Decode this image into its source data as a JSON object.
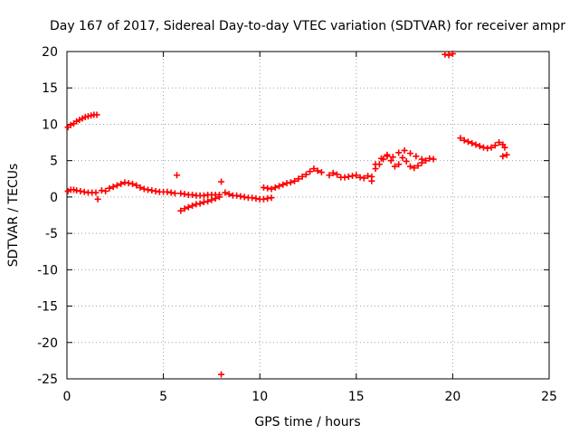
{
  "chart_data": {
    "type": "scatter",
    "title": "Day 167 of 2017, Sidereal Day-to-day VTEC variation (SDTVAR) for receiver ampr",
    "xlabel": "GPS time / hours",
    "ylabel": "SDTVAR / TECUs",
    "xlim": [
      0,
      25
    ],
    "ylim": [
      -25,
      20
    ],
    "xticks": [
      0,
      5,
      10,
      15,
      20,
      25
    ],
    "yticks": [
      20,
      15,
      10,
      5,
      0,
      -5,
      -10,
      -15,
      -20,
      -25
    ],
    "grid": true,
    "marker": "+",
    "color": "#ff0000",
    "series": [
      {
        "name": "SDTVAR",
        "points": [
          [
            0.05,
            9.6
          ],
          [
            0.2,
            9.9
          ],
          [
            0.35,
            10.1
          ],
          [
            0.5,
            10.4
          ],
          [
            0.65,
            10.6
          ],
          [
            0.8,
            10.8
          ],
          [
            0.95,
            11.0
          ],
          [
            1.1,
            11.1
          ],
          [
            1.25,
            11.2
          ],
          [
            1.4,
            11.3
          ],
          [
            1.55,
            11.3
          ],
          [
            0.05,
            0.8
          ],
          [
            0.2,
            1.0
          ],
          [
            0.35,
            1.0
          ],
          [
            0.5,
            0.9
          ],
          [
            0.7,
            0.8
          ],
          [
            0.9,
            0.7
          ],
          [
            1.1,
            0.6
          ],
          [
            1.3,
            0.6
          ],
          [
            1.5,
            0.6
          ],
          [
            1.6,
            -0.3
          ],
          [
            1.8,
            0.9
          ],
          [
            2.0,
            0.8
          ],
          [
            2.2,
            1.2
          ],
          [
            2.4,
            1.4
          ],
          [
            2.6,
            1.6
          ],
          [
            2.8,
            1.8
          ],
          [
            3.0,
            2.0
          ],
          [
            3.2,
            1.9
          ],
          [
            3.4,
            1.8
          ],
          [
            3.6,
            1.6
          ],
          [
            3.8,
            1.3
          ],
          [
            4.0,
            1.1
          ],
          [
            4.2,
            1.0
          ],
          [
            4.4,
            0.9
          ],
          [
            4.6,
            0.8
          ],
          [
            4.8,
            0.7
          ],
          [
            5.0,
            0.7
          ],
          [
            5.2,
            0.7
          ],
          [
            5.4,
            0.6
          ],
          [
            5.6,
            0.5
          ],
          [
            5.7,
            3.0
          ],
          [
            5.9,
            0.5
          ],
          [
            6.1,
            0.4
          ],
          [
            6.3,
            0.3
          ],
          [
            6.5,
            0.3
          ],
          [
            6.7,
            0.2
          ],
          [
            6.9,
            0.2
          ],
          [
            7.1,
            0.2
          ],
          [
            7.3,
            0.3
          ],
          [
            7.5,
            0.3
          ],
          [
            7.7,
            0.3
          ],
          [
            7.9,
            0.3
          ],
          [
            5.9,
            -1.9
          ],
          [
            6.1,
            -1.6
          ],
          [
            6.3,
            -1.4
          ],
          [
            6.5,
            -1.2
          ],
          [
            6.7,
            -1.0
          ],
          [
            6.9,
            -0.9
          ],
          [
            7.1,
            -0.7
          ],
          [
            7.3,
            -0.6
          ],
          [
            7.5,
            -0.4
          ],
          [
            7.7,
            -0.2
          ],
          [
            7.9,
            0.0
          ],
          [
            8.0,
            2.1
          ],
          [
            8.0,
            -24.4
          ],
          [
            8.2,
            0.6
          ],
          [
            8.4,
            0.4
          ],
          [
            8.6,
            0.2
          ],
          [
            8.8,
            0.2
          ],
          [
            9.0,
            0.1
          ],
          [
            9.2,
            0.0
          ],
          [
            9.4,
            -0.1
          ],
          [
            9.6,
            -0.1
          ],
          [
            9.8,
            -0.2
          ],
          [
            10.0,
            -0.3
          ],
          [
            10.2,
            -0.3
          ],
          [
            10.4,
            -0.2
          ],
          [
            10.6,
            -0.1
          ],
          [
            10.2,
            1.3
          ],
          [
            10.4,
            1.2
          ],
          [
            10.6,
            1.1
          ],
          [
            10.8,
            1.3
          ],
          [
            11.0,
            1.5
          ],
          [
            11.2,
            1.7
          ],
          [
            11.4,
            1.9
          ],
          [
            11.6,
            2.0
          ],
          [
            11.8,
            2.2
          ],
          [
            12.0,
            2.5
          ],
          [
            12.2,
            2.8
          ],
          [
            12.4,
            3.1
          ],
          [
            12.6,
            3.5
          ],
          [
            12.8,
            3.9
          ],
          [
            13.0,
            3.6
          ],
          [
            13.2,
            3.4
          ],
          [
            13.6,
            3.0
          ],
          [
            13.8,
            3.3
          ],
          [
            14.0,
            3.1
          ],
          [
            14.2,
            2.7
          ],
          [
            14.4,
            2.7
          ],
          [
            14.6,
            2.8
          ],
          [
            14.8,
            2.9
          ],
          [
            15.0,
            3.0
          ],
          [
            15.2,
            2.7
          ],
          [
            15.4,
            2.6
          ],
          [
            15.6,
            2.9
          ],
          [
            15.8,
            2.2
          ],
          [
            15.8,
            2.8
          ],
          [
            16.0,
            3.9
          ],
          [
            16.2,
            4.5
          ],
          [
            16.4,
            5.2
          ],
          [
            16.6,
            5.6
          ],
          [
            16.8,
            5.0
          ],
          [
            17.0,
            4.2
          ],
          [
            17.2,
            4.5
          ],
          [
            17.4,
            5.4
          ],
          [
            17.6,
            4.9
          ],
          [
            17.8,
            4.2
          ],
          [
            18.0,
            4.0
          ],
          [
            18.2,
            4.3
          ],
          [
            18.4,
            4.7
          ],
          [
            18.6,
            5.0
          ],
          [
            18.8,
            5.3
          ],
          [
            19.0,
            5.2
          ],
          [
            16.0,
            4.5
          ],
          [
            16.3,
            5.3
          ],
          [
            16.6,
            5.8
          ],
          [
            16.9,
            5.5
          ],
          [
            17.2,
            6.1
          ],
          [
            17.5,
            6.4
          ],
          [
            17.8,
            6.0
          ],
          [
            18.1,
            5.6
          ],
          [
            18.4,
            5.2
          ],
          [
            19.6,
            19.6
          ],
          [
            19.8,
            19.5
          ],
          [
            20.0,
            19.7
          ],
          [
            20.4,
            8.1
          ],
          [
            20.6,
            7.8
          ],
          [
            20.8,
            7.6
          ],
          [
            21.0,
            7.4
          ],
          [
            21.2,
            7.2
          ],
          [
            21.4,
            7.0
          ],
          [
            21.6,
            6.8
          ],
          [
            21.8,
            6.7
          ],
          [
            22.0,
            6.8
          ],
          [
            22.2,
            7.1
          ],
          [
            22.4,
            7.5
          ],
          [
            22.6,
            7.2
          ],
          [
            22.7,
            6.8
          ],
          [
            22.8,
            5.8
          ],
          [
            22.6,
            5.6
          ]
        ]
      }
    ]
  }
}
